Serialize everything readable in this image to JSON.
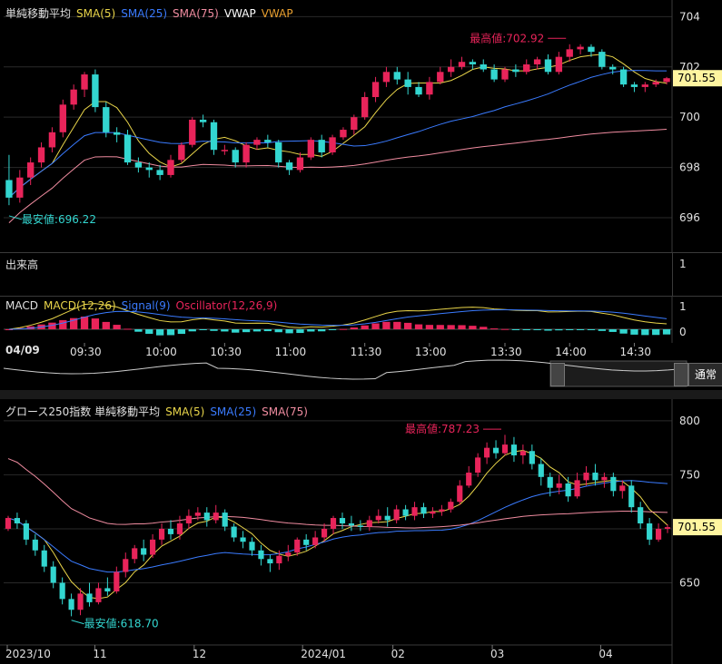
{
  "colors": {
    "up": "#e8245a",
    "down": "#33d6d0",
    "sma5": "#e9d54a",
    "sma25": "#3a7bff",
    "sma75": "#f08ca0",
    "vwap": "#ffffff",
    "grid": "#2a2a2a",
    "price_tag_bg": "#fff5a0"
  },
  "intraday": {
    "legend": {
      "title": "単純移動平均",
      "sma5": "SMA(5)",
      "sma25": "SMA(25)",
      "sma75": "SMA(75)",
      "vwap1": "VWAP",
      "vwap2": "VWAP"
    },
    "high_label": "最高値:702.92",
    "low_label": "最安値:696.22",
    "price_tag": "701.55",
    "volume_label": "出来高",
    "volume_tick": "1",
    "macd_legend": {
      "macd": "MACD",
      "macd_line": "MACD(12,26)",
      "signal": "Signal(9)",
      "osc": "Oscillator(12,26,9)"
    },
    "macd_ticks": [
      "1",
      "0"
    ],
    "date_label": "04/09",
    "mode_button": "通常"
  },
  "daily": {
    "legend": {
      "title": "グロース250指数 単純移動平均",
      "sma5": "SMA(5)",
      "sma25": "SMA(25)",
      "sma75": "SMA(75)"
    },
    "high_label": "最高値:787.23",
    "low_label": "最安値:618.70",
    "price_tag": "701.55"
  },
  "chart_data": [
    {
      "type": "candlestick",
      "title": "単純移動平均",
      "y_ticks": [
        "704",
        "702",
        "700",
        "698",
        "696"
      ],
      "ylim": [
        695.1,
        704.3
      ],
      "x_ticks": [
        "09:30",
        "10:00",
        "10:30",
        "11:00",
        "11:30",
        "13:00",
        "13:30",
        "14:00",
        "14:30"
      ],
      "candles": [
        [
          697.5,
          696.8,
          698.5,
          696.5
        ],
        [
          696.8,
          697.6,
          697.9,
          696.6
        ],
        [
          697.6,
          698.2,
          698.4,
          697.3
        ],
        [
          698.2,
          698.8,
          699.0,
          698.0
        ],
        [
          698.8,
          699.4,
          699.6,
          698.6
        ],
        [
          699.4,
          700.5,
          700.7,
          699.2
        ],
        [
          700.5,
          701.1,
          701.3,
          700.3
        ],
        [
          701.1,
          701.7,
          701.8,
          700.8
        ],
        [
          701.7,
          700.4,
          701.9,
          700.2
        ],
        [
          700.4,
          699.4,
          700.6,
          699.2
        ],
        [
          699.4,
          699.3,
          699.6,
          699.0
        ],
        [
          699.3,
          698.2,
          699.5,
          698.1
        ],
        [
          698.2,
          698.0,
          698.4,
          697.8
        ],
        [
          698.0,
          697.9,
          698.2,
          697.6
        ],
        [
          697.9,
          697.7,
          698.1,
          697.5
        ],
        [
          697.7,
          698.3,
          698.5,
          697.6
        ],
        [
          698.3,
          698.9,
          699.0,
          698.2
        ],
        [
          698.9,
          699.9,
          700.0,
          698.8
        ],
        [
          699.9,
          699.8,
          700.1,
          699.6
        ],
        [
          699.8,
          698.7,
          699.9,
          698.5
        ],
        [
          698.7,
          698.7,
          698.9,
          698.5
        ],
        [
          698.7,
          698.2,
          698.8,
          698.0
        ],
        [
          698.2,
          698.9,
          699.0,
          698.0
        ],
        [
          698.9,
          699.1,
          699.2,
          698.7
        ],
        [
          699.1,
          699.0,
          699.3,
          698.8
        ],
        [
          699.0,
          698.2,
          699.1,
          698.0
        ],
        [
          698.2,
          697.9,
          698.3,
          697.7
        ],
        [
          697.9,
          698.4,
          698.6,
          697.8
        ],
        [
          698.4,
          699.1,
          699.2,
          698.3
        ],
        [
          699.1,
          698.6,
          699.3,
          698.4
        ],
        [
          698.6,
          699.2,
          699.3,
          698.5
        ],
        [
          699.2,
          699.5,
          699.6,
          699.1
        ],
        [
          699.5,
          700.0,
          700.1,
          699.3
        ],
        [
          700.0,
          700.8,
          701.0,
          699.9
        ],
        [
          700.8,
          701.4,
          701.6,
          700.6
        ],
        [
          701.4,
          701.8,
          702.0,
          701.2
        ],
        [
          701.8,
          701.5,
          702.0,
          701.3
        ],
        [
          701.5,
          701.2,
          701.8,
          700.9
        ],
        [
          701.2,
          700.9,
          701.4,
          700.8
        ],
        [
          700.9,
          701.4,
          701.6,
          700.7
        ],
        [
          701.4,
          701.8,
          702.0,
          701.3
        ],
        [
          701.8,
          702.0,
          702.3,
          701.6
        ],
        [
          702.0,
          702.2,
          702.4,
          701.9
        ],
        [
          702.2,
          702.1,
          702.3,
          701.9
        ],
        [
          702.1,
          701.9,
          702.3,
          701.8
        ],
        [
          701.9,
          701.5,
          702.1,
          701.4
        ],
        [
          701.5,
          701.9,
          702.0,
          701.4
        ],
        [
          701.9,
          701.8,
          702.1,
          701.6
        ],
        [
          701.8,
          702.1,
          702.3,
          701.7
        ],
        [
          702.1,
          702.3,
          702.4,
          701.9
        ],
        [
          702.3,
          701.8,
          702.5,
          701.7
        ],
        [
          701.8,
          702.4,
          702.6,
          701.7
        ],
        [
          702.4,
          702.7,
          702.9,
          702.2
        ],
        [
          702.7,
          702.8,
          702.9,
          702.5
        ],
        [
          702.8,
          702.6,
          702.9,
          702.4
        ],
        [
          702.6,
          702.0,
          702.7,
          701.9
        ],
        [
          702.0,
          701.9,
          702.1,
          701.7
        ],
        [
          701.9,
          701.3,
          702.0,
          701.2
        ],
        [
          701.3,
          701.2,
          701.4,
          701.0
        ],
        [
          701.2,
          701.3,
          701.4,
          701.0
        ],
        [
          701.3,
          701.4,
          701.5,
          701.2
        ],
        [
          701.4,
          701.55,
          701.6,
          701.3
        ]
      ],
      "series": [
        {
          "name": "SMA(5)"
        },
        {
          "name": "SMA(25)"
        },
        {
          "name": "SMA(75)"
        }
      ],
      "highest": 702.92,
      "lowest": 696.22,
      "last": 701.55
    },
    {
      "type": "candlestick",
      "title": "グロース250指数 単純移動平均",
      "y_ticks": [
        "800",
        "750",
        "700",
        "650"
      ],
      "ylim": [
        600,
        810
      ],
      "x_ticks": [
        "2023/10",
        "11",
        "12",
        "2024/01",
        "02",
        "03",
        "04"
      ],
      "candles": [
        [
          700,
          710,
          712,
          698
        ],
        [
          710,
          705,
          715,
          700
        ],
        [
          705,
          690,
          708,
          685
        ],
        [
          690,
          680,
          695,
          675
        ],
        [
          680,
          665,
          685,
          660
        ],
        [
          665,
          650,
          670,
          645
        ],
        [
          650,
          635,
          655,
          630
        ],
        [
          635,
          625,
          640,
          619
        ],
        [
          625,
          640,
          645,
          620
        ],
        [
          640,
          632,
          650,
          628
        ],
        [
          632,
          645,
          650,
          630
        ],
        [
          645,
          642,
          655,
          638
        ],
        [
          642,
          660,
          665,
          640
        ],
        [
          660,
          672,
          678,
          655
        ],
        [
          672,
          682,
          685,
          668
        ],
        [
          682,
          676,
          690,
          670
        ],
        [
          676,
          690,
          695,
          673
        ],
        [
          690,
          700,
          705,
          685
        ],
        [
          700,
          695,
          708,
          690
        ],
        [
          695,
          705,
          712,
          690
        ],
        [
          705,
          712,
          718,
          700
        ],
        [
          712,
          715,
          720,
          708
        ],
        [
          715,
          708,
          720,
          702
        ],
        [
          708,
          715,
          722,
          705
        ],
        [
          715,
          702,
          718,
          698
        ],
        [
          702,
          692,
          705,
          688
        ],
        [
          692,
          688,
          698,
          682
        ],
        [
          688,
          680,
          692,
          675
        ],
        [
          680,
          672,
          685,
          666
        ],
        [
          672,
          668,
          676,
          660
        ],
        [
          668,
          675,
          680,
          662
        ],
        [
          675,
          678,
          685,
          670
        ],
        [
          678,
          690,
          692,
          675
        ],
        [
          690,
          685,
          695,
          680
        ],
        [
          685,
          692,
          698,
          682
        ],
        [
          692,
          700,
          705,
          688
        ],
        [
          700,
          710,
          712,
          695
        ],
        [
          710,
          705,
          715,
          700
        ],
        [
          705,
          703,
          712,
          698
        ],
        [
          703,
          702,
          708,
          698
        ],
        [
          702,
          708,
          712,
          698
        ],
        [
          708,
          712,
          718,
          705
        ],
        [
          712,
          708,
          720,
          702
        ],
        [
          708,
          718,
          722,
          705
        ],
        [
          718,
          712,
          722,
          708
        ],
        [
          712,
          720,
          725,
          708
        ],
        [
          720,
          714,
          724,
          710
        ],
        [
          714,
          716,
          720,
          710
        ],
        [
          716,
          718,
          722,
          712
        ],
        [
          718,
          725,
          728,
          715
        ],
        [
          725,
          740,
          745,
          722
        ],
        [
          740,
          752,
          758,
          738
        ],
        [
          752,
          766,
          770,
          748
        ],
        [
          766,
          775,
          780,
          760
        ],
        [
          775,
          770,
          782,
          765
        ],
        [
          770,
          778,
          787,
          768
        ],
        [
          778,
          768,
          785,
          762
        ],
        [
          768,
          772,
          778,
          760
        ],
        [
          772,
          760,
          778,
          755
        ],
        [
          760,
          748,
          765,
          740
        ],
        [
          748,
          738,
          752,
          730
        ],
        [
          738,
          742,
          750,
          732
        ],
        [
          742,
          730,
          748,
          725
        ],
        [
          730,
          745,
          752,
          728
        ],
        [
          745,
          752,
          758,
          740
        ],
        [
          752,
          745,
          760,
          740
        ],
        [
          745,
          748,
          752,
          738
        ],
        [
          748,
          735,
          752,
          730
        ],
        [
          735,
          740,
          745,
          728
        ],
        [
          740,
          720,
          745,
          715
        ],
        [
          720,
          705,
          725,
          700
        ],
        [
          705,
          690,
          710,
          685
        ],
        [
          690,
          700,
          705,
          688
        ],
        [
          700,
          701.55,
          704,
          696
        ]
      ],
      "series": [
        {
          "name": "SMA(5)"
        },
        {
          "name": "SMA(25)"
        },
        {
          "name": "SMA(75)"
        }
      ],
      "highest": 787.23,
      "lowest": 618.7,
      "last": 701.55
    }
  ]
}
